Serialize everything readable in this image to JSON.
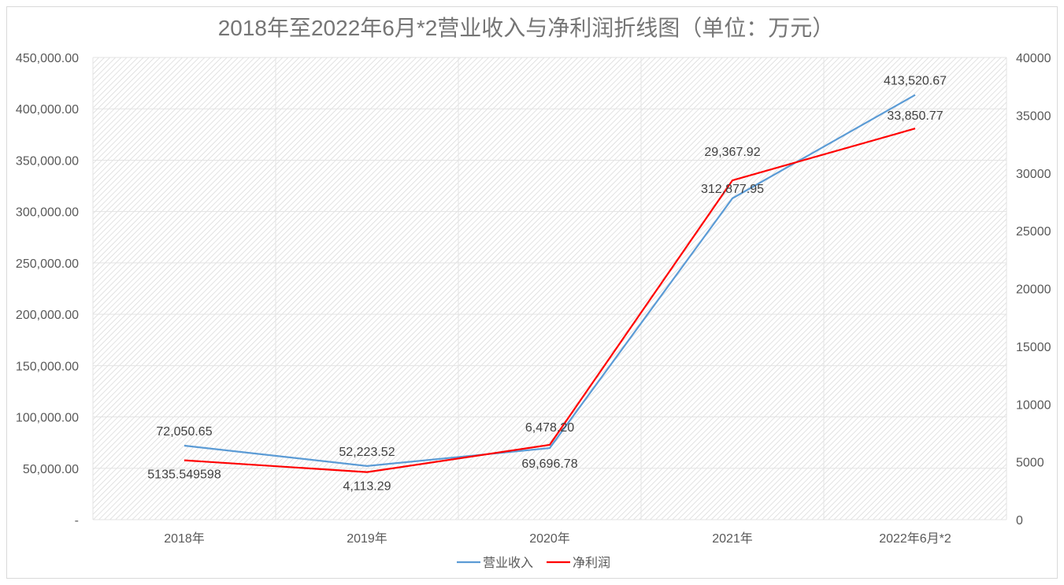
{
  "chart_data": {
    "type": "line",
    "title": "2018年至2022年6月*2营业收入与净利润折线图（单位：万元）",
    "categories": [
      "2018年",
      "2019年",
      "2020年",
      "2021年",
      "2022年6月*2"
    ],
    "series": [
      {
        "name": "营业收入",
        "axis": "left",
        "color": "#5b9bd5",
        "values": [
          72050.65,
          52223.52,
          69696.78,
          312877.95,
          413520.67
        ],
        "labels": [
          "72,050.65",
          "52,223.52",
          "69,696.78",
          "312,877.95",
          "413,520.67"
        ]
      },
      {
        "name": "净利润",
        "axis": "right",
        "color": "#ff0000",
        "values": [
          5135.549598,
          4113.29,
          6478.2,
          29367.92,
          33850.77
        ],
        "labels": [
          "5135.549598",
          "4,113.29",
          "6,478.20",
          "29,367.92",
          "33,850.77"
        ]
      }
    ],
    "y_left": {
      "range": [
        0,
        450000
      ],
      "ticks": [
        "-",
        "50,000.00",
        "100,000.00",
        "150,000.00",
        "200,000.00",
        "250,000.00",
        "300,000.00",
        "350,000.00",
        "400,000.00",
        "450,000.00"
      ]
    },
    "y_right": {
      "range": [
        0,
        40000
      ],
      "ticks": [
        "0",
        "5000",
        "10000",
        "15000",
        "20000",
        "25000",
        "30000",
        "35000",
        "40000"
      ]
    },
    "grid": true,
    "legend": "bottom",
    "plot_background": "diagonal-hatch"
  }
}
